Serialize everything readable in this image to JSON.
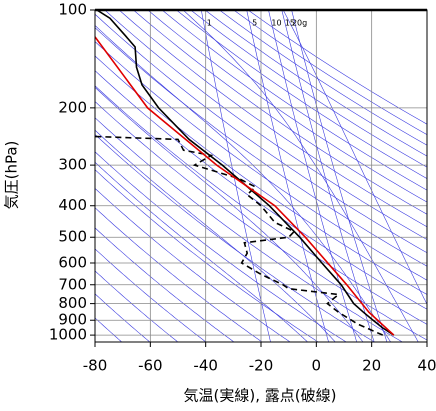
{
  "chart_data": {
    "type": "sounding",
    "xlabel": "気温(実線), 露点(破線)",
    "ylabel": "気圧(hPa)",
    "xlim": [
      -80,
      40
    ],
    "xticks": [
      -80,
      -60,
      -40,
      -20,
      0,
      20,
      40
    ],
    "ylim": [
      1050,
      100
    ],
    "yticks": [
      100,
      200,
      300,
      400,
      500,
      600,
      700,
      800,
      900,
      1000
    ],
    "y_log_scale": true,
    "grid": true,
    "mixing_ratios": [
      {
        "value": 1,
        "label": "1"
      },
      {
        "value": 5,
        "label": "5"
      },
      {
        "value": 10,
        "label": "10"
      },
      {
        "value": 15,
        "label": "15"
      },
      {
        "value": 20,
        "label": "20g"
      }
    ],
    "series": [
      {
        "color": "#000000",
        "linestyle": "solid",
        "y": [
          1000,
          950,
          900,
          850,
          800,
          700,
          600,
          500,
          400,
          300,
          250,
          200,
          170,
          150,
          130,
          120,
          106,
          100
        ],
        "x": [
          28,
          24,
          20.5,
          17,
          13.5,
          9,
          2,
          -6,
          -17,
          -34,
          -46,
          -57,
          -63,
          -65,
          -65.5,
          -69,
          -74.6,
          -79.3
        ]
      },
      {
        "color": "#000000",
        "linestyle": "dashed",
        "y": [
          1000,
          925,
          850,
          800,
          750,
          720,
          700,
          650,
          600,
          560,
          520,
          500,
          480,
          450,
          400,
          370,
          350,
          330,
          300,
          280,
          270,
          250,
          245
        ],
        "x": [
          24,
          15,
          8,
          4,
          8,
          -10,
          -12,
          -20,
          -27,
          -25,
          -26,
          -10,
          -8,
          -15,
          -20,
          -25,
          -22,
          -28,
          -44,
          -38,
          -48,
          -50,
          -80
        ]
      },
      {
        "color": "#e00000",
        "linestyle": "solid",
        "y": [
          1000,
          850,
          700,
          500,
          400,
          300,
          200,
          121
        ],
        "x": [
          28,
          19,
          11,
          -4,
          -15,
          -36,
          -61,
          -80
        ]
      }
    ]
  }
}
